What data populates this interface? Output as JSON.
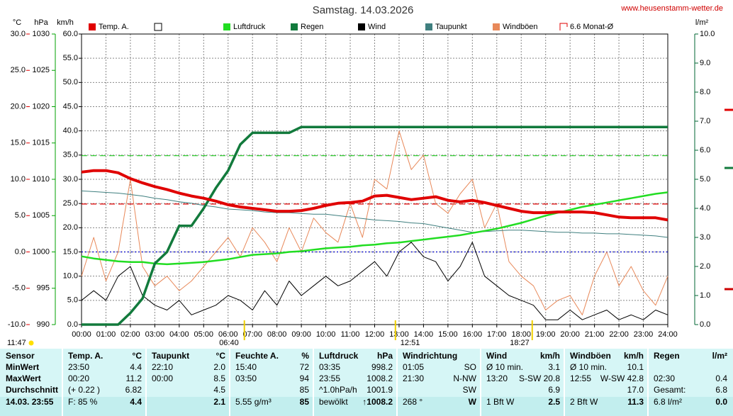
{
  "chart_data": {
    "type": "line",
    "title": "Samstag. 14.03.2026",
    "source": "www.heusenstamm-wetter.de",
    "x": [
      0,
      0.5,
      1,
      1.5,
      2,
      2.5,
      3,
      3.5,
      4,
      4.5,
      5,
      5.5,
      6,
      6.5,
      7,
      7.5,
      8,
      8.5,
      9,
      9.5,
      10,
      10.5,
      11,
      11.5,
      12,
      12.5,
      13,
      13.5,
      14,
      14.5,
      15,
      15.5,
      16,
      16.5,
      17,
      17.5,
      18,
      18.5,
      19,
      19.5,
      20,
      20.5,
      21,
      21.5,
      22,
      22.5,
      23,
      23.5,
      24
    ],
    "xlim": [
      0,
      24
    ],
    "xticks": [
      {
        "value": 0,
        "label": "00:00"
      },
      {
        "value": 1,
        "label": "01:00"
      },
      {
        "value": 2,
        "label": "02:00"
      },
      {
        "value": 3,
        "label": "03:00"
      },
      {
        "value": 4,
        "label": "04:00"
      },
      {
        "value": 5,
        "label": "05:00"
      },
      {
        "value": 6,
        "label": "06:00"
      },
      {
        "value": 7,
        "label": "07:00"
      },
      {
        "value": 8,
        "label": "08:00"
      },
      {
        "value": 9,
        "label": "09:00"
      },
      {
        "value": 10,
        "label": "10:00"
      },
      {
        "value": 11,
        "label": "11:00"
      },
      {
        "value": 12,
        "label": "12:00"
      },
      {
        "value": 13,
        "label": "13:00"
      },
      {
        "value": 14,
        "label": "14:00"
      },
      {
        "value": 15,
        "label": "15:00"
      },
      {
        "value": 16,
        "label": "16:00"
      },
      {
        "value": 17,
        "label": "17:00"
      },
      {
        "value": 18,
        "label": "18:00"
      },
      {
        "value": 19,
        "label": "19:00"
      },
      {
        "value": 20,
        "label": "20:00"
      },
      {
        "value": 21,
        "label": "21:00"
      },
      {
        "value": 22,
        "label": "22:00"
      },
      {
        "value": 23,
        "label": "23:00"
      },
      {
        "value": 24,
        "label": "24:00"
      }
    ],
    "grid": true,
    "axes": {
      "temp": {
        "label": "°C",
        "color": "#e00000",
        "lim": [
          -10,
          30
        ],
        "ticks": [
          {
            "value": -10,
            "label": "-10.0"
          },
          {
            "value": -5,
            "label": "-5.0"
          },
          {
            "value": 0,
            "label": "0.0"
          },
          {
            "value": 5,
            "label": "5.0"
          },
          {
            "value": 10,
            "label": "10.0"
          },
          {
            "value": 15,
            "label": "15.0"
          },
          {
            "value": 20,
            "label": "20.0"
          },
          {
            "value": 25,
            "label": "25.0"
          },
          {
            "value": 30,
            "label": "30.0"
          }
        ]
      },
      "pressure": {
        "label": "hPa",
        "color": "#00a000",
        "lim": [
          990,
          1030
        ],
        "ticks": [
          990,
          995,
          1000,
          1005,
          1010,
          1015,
          1020,
          1025,
          1030
        ]
      },
      "wind": {
        "label": "km/h",
        "color": "#000000",
        "lim": [
          0,
          60
        ],
        "ticks": [
          {
            "value": 0,
            "label": "0.0"
          },
          {
            "value": 5,
            "label": "5.0"
          },
          {
            "value": 10,
            "label": "10.0"
          },
          {
            "value": 15,
            "label": "15.0"
          },
          {
            "value": 20,
            "label": "20.0"
          },
          {
            "value": 25,
            "label": "25.0"
          },
          {
            "value": 30,
            "label": "30.0"
          },
          {
            "value": 35,
            "label": "35.0"
          },
          {
            "value": 40,
            "label": "40.0"
          },
          {
            "value": 45,
            "label": "45.0"
          },
          {
            "value": 50,
            "label": "50.0"
          },
          {
            "value": 55,
            "label": "55.0"
          },
          {
            "value": 60,
            "label": "60.0"
          }
        ]
      },
      "rain": {
        "label": "l/m²",
        "color": "#006633",
        "lim": [
          0,
          10
        ],
        "ticks": [
          {
            "value": 0,
            "label": "0.0"
          },
          {
            "value": 1,
            "label": "1.0"
          },
          {
            "value": 2,
            "label": "2.0"
          },
          {
            "value": 3,
            "label": "3.0"
          },
          {
            "value": 4,
            "label": "4.0"
          },
          {
            "value": 5,
            "label": "5.0"
          },
          {
            "value": 6,
            "label": "6.0"
          },
          {
            "value": 7,
            "label": "7.0"
          },
          {
            "value": 8,
            "label": "8.0"
          },
          {
            "value": 9,
            "label": "9.0"
          },
          {
            "value": 10,
            "label": "10.0"
          }
        ]
      }
    },
    "series": [
      {
        "name": "Temp. A.",
        "color": "#e00000",
        "axis": "temp",
        "values": [
          11.0,
          11.2,
          11.2,
          10.9,
          10.1,
          9.5,
          9.0,
          8.6,
          8.1,
          7.7,
          7.4,
          7.0,
          6.5,
          6.2,
          6.0,
          5.8,
          5.6,
          5.6,
          5.7,
          6.0,
          6.4,
          6.7,
          6.8,
          7.0,
          7.7,
          7.8,
          7.5,
          7.2,
          7.4,
          7.6,
          7.1,
          6.9,
          7.1,
          6.8,
          6.4,
          6.0,
          5.6,
          5.4,
          5.4,
          5.5,
          5.5,
          5.5,
          5.4,
          5.1,
          4.8,
          4.7,
          4.7,
          4.7,
          4.4
        ]
      },
      {
        "name": "Luftdruck",
        "color": "#22dd22",
        "axis": "pressure",
        "values": [
          999.4,
          999.1,
          998.9,
          998.7,
          998.6,
          998.6,
          998.4,
          998.3,
          998.4,
          998.5,
          998.6,
          998.8,
          999.0,
          999.3,
          999.6,
          999.7,
          999.8,
          1000.0,
          1000.1,
          1000.3,
          1000.5,
          1000.6,
          1000.7,
          1000.9,
          1001.0,
          1001.2,
          1001.3,
          1001.5,
          1001.7,
          1001.9,
          1002.1,
          1002.3,
          1002.6,
          1002.9,
          1003.2,
          1003.6,
          1004.0,
          1004.5,
          1005.0,
          1005.4,
          1005.8,
          1006.2,
          1006.5,
          1006.8,
          1007.1,
          1007.4,
          1007.7,
          1008.0,
          1008.2
        ]
      },
      {
        "name": "Regen",
        "color": "#127a3c",
        "axis": "rain",
        "values": [
          0,
          0,
          0,
          0,
          0.4,
          0.9,
          2.1,
          2.5,
          3.4,
          3.4,
          4.0,
          4.7,
          5.3,
          6.2,
          6.6,
          6.6,
          6.6,
          6.6,
          6.8,
          6.8,
          6.8,
          6.8,
          6.8,
          6.8,
          6.8,
          6.8,
          6.8,
          6.8,
          6.8,
          6.8,
          6.8,
          6.8,
          6.8,
          6.8,
          6.8,
          6.8,
          6.8,
          6.8,
          6.8,
          6.8,
          6.8,
          6.8,
          6.8,
          6.8,
          6.8,
          6.8,
          6.8,
          6.8,
          6.8
        ]
      },
      {
        "name": "Wind",
        "color": "#000000",
        "axis": "wind",
        "values": [
          5,
          7,
          5,
          10,
          12,
          6,
          4,
          3,
          5,
          2,
          3,
          4,
          6,
          5,
          3,
          7,
          4,
          9,
          6,
          8,
          10,
          8,
          9,
          11,
          13,
          10,
          15,
          17,
          14,
          13,
          9,
          12,
          17,
          10,
          8,
          6,
          5,
          4,
          1,
          1,
          3,
          1,
          2,
          3,
          1,
          2,
          1,
          3,
          2
        ]
      },
      {
        "name": "Taupunkt",
        "color": "#3f7f7f",
        "axis": "temp",
        "values": [
          8.4,
          8.3,
          8.2,
          8.1,
          7.9,
          7.7,
          7.4,
          7.2,
          6.9,
          6.7,
          6.4,
          6.2,
          5.9,
          5.8,
          5.7,
          5.5,
          5.4,
          5.4,
          5.3,
          5.2,
          5.2,
          5.0,
          4.8,
          4.6,
          4.4,
          4.3,
          4.2,
          4.0,
          3.9,
          3.6,
          3.3,
          3.0,
          2.7,
          2.8,
          2.9,
          3.0,
          3.0,
          2.9,
          2.8,
          2.7,
          2.7,
          2.6,
          2.6,
          2.5,
          2.5,
          2.4,
          2.3,
          2.2,
          2.0
        ]
      },
      {
        "name": "Windböen",
        "color": "#e8895a",
        "axis": "wind",
        "values": [
          10,
          18,
          9,
          15,
          30,
          12,
          8,
          10,
          7,
          9,
          12,
          15,
          18,
          14,
          20,
          17,
          13,
          20,
          15,
          22,
          19,
          17,
          25,
          18,
          30,
          28,
          40,
          32,
          35,
          25,
          23,
          27,
          30,
          20,
          25,
          13,
          10,
          8,
          3,
          5,
          6,
          2,
          10,
          15,
          8,
          12,
          7,
          4,
          10
        ]
      }
    ],
    "reference_lines": [
      {
        "name": "6.6 Monat-Ø",
        "axis": "temp",
        "value": 6.6,
        "color": "#e00000"
      },
      {
        "axis": "pressure",
        "value": 1013.25,
        "color": "#22cc22"
      },
      {
        "axis": "temp",
        "value": 0,
        "color": "#0000cc"
      }
    ],
    "day_length": "11:47",
    "sun_markers": [
      {
        "value": 6.6667,
        "label": "06:40"
      },
      {
        "value": 12.85,
        "label": "12:51"
      },
      {
        "value": 18.45,
        "label": "18:27"
      }
    ]
  },
  "table": {
    "header": [
      "Sensor",
      "Temp. A.",
      "°C",
      "Taupunkt",
      "°C",
      "Feuchte A.",
      "%",
      "Luftdruck",
      "hPa",
      "Windrichtung",
      null,
      "Wind",
      "km/h",
      "Windböen",
      "km/h",
      "Regen",
      "l/m²"
    ],
    "rows": [
      [
        "MinWert",
        "23:50",
        "4.4",
        "22:10",
        "2.0",
        "15:40",
        "72",
        "03:35",
        "998.2",
        "01:05",
        "SO",
        "Ø 10 min.",
        "3.1",
        "Ø 10 min.",
        "10.1",
        null,
        null
      ],
      [
        "MaxWert",
        "00:20",
        "11.2",
        "00:00",
        "8.5",
        "03:50",
        "94",
        "23:55",
        "1008.2",
        "21:30",
        "N-NW",
        "13:20",
        "S-SW 20.8",
        "12:55",
        "W-SW 42.8",
        "02:30",
        "0.4"
      ],
      [
        "Durchschnitt",
        "(+ 0.22 )",
        "6.82",
        null,
        "4.5",
        null,
        "85",
        "^1.0hPa/h",
        "1001.9",
        null,
        "SW",
        null,
        "6.9",
        null,
        "17.0",
        "Gesamt:",
        "6.8"
      ],
      [
        "14.03. 23:55",
        "F: 85 %",
        "4.4",
        null,
        "2.1",
        "5.55 g/m³",
        "85",
        "bewölkt",
        "↑1008.2",
        "268 °",
        "W",
        "1 Bft W",
        "2.5",
        "2 Bft W",
        "11.3",
        "6.8 l/m²",
        "0.0"
      ]
    ]
  }
}
